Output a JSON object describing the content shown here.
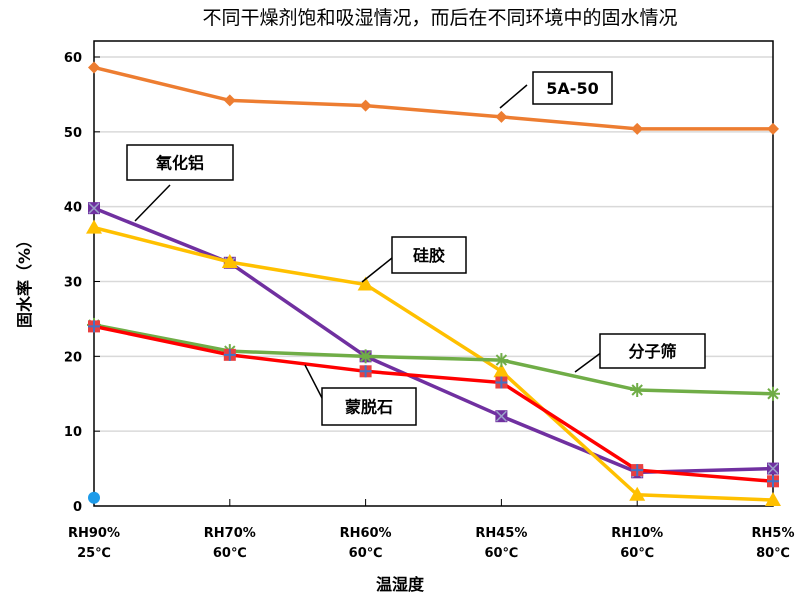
{
  "chart_data": {
    "type": "line",
    "title": "不同干燥剂饱和吸湿情况，而后在不同环境中的固水情况",
    "xlabel": "温湿度",
    "ylabel": "固水率（%）",
    "ylim": [
      0,
      60
    ],
    "yticks": [
      0,
      10,
      20,
      30,
      40,
      50,
      60
    ],
    "grid": true,
    "categories": [
      {
        "line1": "RH90%",
        "line2": "25℃"
      },
      {
        "line1": "RH70%",
        "line2": "60℃"
      },
      {
        "line1": "RH60%",
        "line2": "60℃"
      },
      {
        "line1": "RH45%",
        "line2": "60℃"
      },
      {
        "line1": "RH10%",
        "line2": "60℃"
      },
      {
        "line1": "RH5%",
        "line2": "80℃"
      }
    ],
    "series": [
      {
        "name": "5A-50",
        "color": "#ED7D31",
        "marker": "diamond",
        "values": [
          58.6,
          54.2,
          53.5,
          52.0,
          50.4,
          50.4
        ]
      },
      {
        "name": "氧化铝",
        "color": "#7030A0",
        "marker": "square-x",
        "values": [
          39.8,
          32.5,
          20.0,
          12.0,
          4.5,
          5.0
        ]
      },
      {
        "name": "硅胶",
        "color": "#FFC000",
        "marker": "triangle",
        "values": [
          37.2,
          32.6,
          29.6,
          18.0,
          1.5,
          0.8
        ]
      },
      {
        "name": "分子筛",
        "color": "#70AD47",
        "marker": "star",
        "values": [
          24.2,
          20.7,
          20.0,
          19.5,
          15.5,
          15.0
        ]
      },
      {
        "name": "蒙脱石",
        "color": "#FF0000",
        "marker": "square-plus",
        "values": [
          24.0,
          20.2,
          18.0,
          16.5,
          4.8,
          3.3
        ]
      }
    ],
    "extra_point": {
      "color": "#1E9BE9",
      "category_index": 0,
      "value": 1.1
    },
    "legend": "callout labels"
  }
}
